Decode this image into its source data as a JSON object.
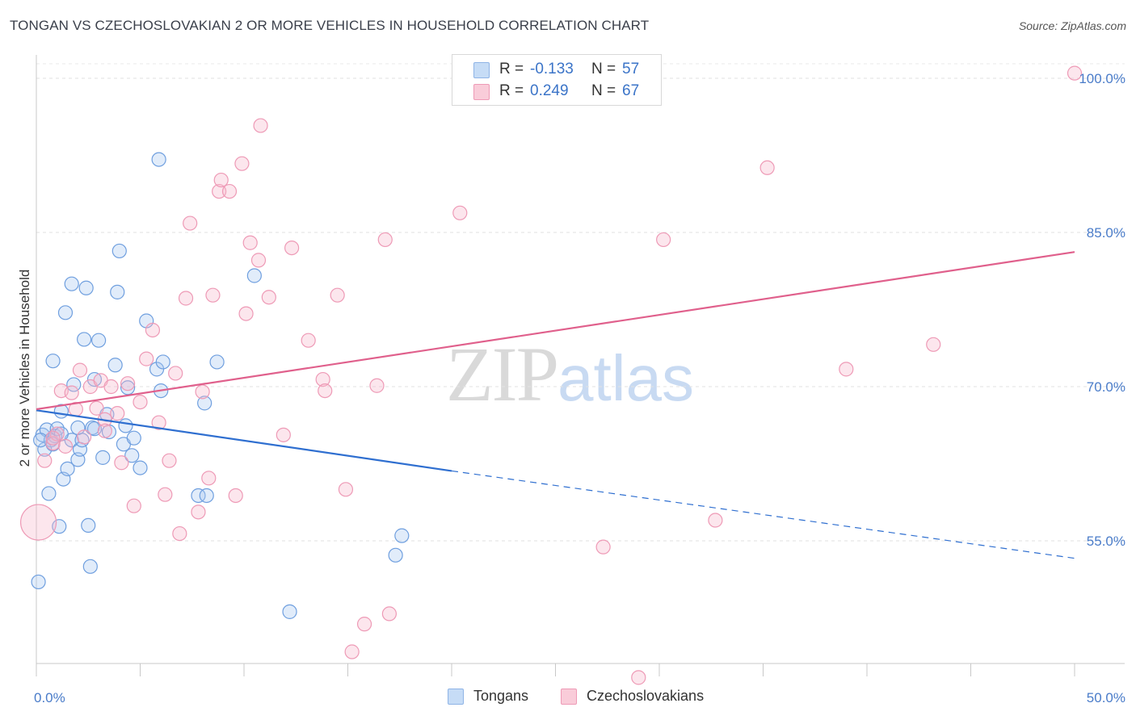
{
  "title": "TONGAN VS CZECHOSLOVAKIAN 2 OR MORE VEHICLES IN HOUSEHOLD CORRELATION CHART",
  "source": "Source: ZipAtlas.com",
  "watermark": {
    "zip": "ZIP",
    "atlas": "atlas"
  },
  "legend": {
    "rows": [
      {
        "r_label": "R =",
        "r_value": "-0.133",
        "n_label": "N =",
        "n_value": "57",
        "color": "#a8c8f0"
      },
      {
        "r_label": "R =",
        "r_value": "0.249",
        "n_label": "N =",
        "n_value": "67",
        "color": "#f5b8cb"
      }
    ]
  },
  "bottom_legend": [
    {
      "label": "Tongans",
      "color": "#a8c8f0"
    },
    {
      "label": "Czechoslovakians",
      "color": "#f5b8cb"
    }
  ],
  "chart_data": {
    "type": "scatter",
    "title": "TONGAN VS CZECHOSLOVAKIAN 2 OR MORE VEHICLES IN HOUSEHOLD CORRELATION CHART",
    "xlabel": "",
    "ylabel": "2 or more Vehicles in Household",
    "xlim": [
      0,
      50
    ],
    "ylim": [
      41,
      100.5
    ],
    "x_tick_labels": [
      "0.0%",
      "50.0%"
    ],
    "y_ticks": [
      55,
      70,
      85,
      100
    ],
    "y_tick_labels": [
      "55.0%",
      "70.0%",
      "85.0%",
      "100.0%"
    ],
    "grid": true,
    "colors": {
      "tongans": "#4a86d8",
      "czech": "#e0608c",
      "tongans_fill": "#a8c8f0",
      "czech_fill": "#f5b8cb",
      "axis_text": "#4a7cc9"
    },
    "series": [
      {
        "name": "Tongans",
        "trend": {
          "x": [
            0,
            20
          ],
          "y": [
            67.7,
            61.8
          ],
          "dashed_to": [
            50,
            53.3
          ]
        },
        "points": [
          [
            0.1,
            51.0
          ],
          [
            0.3,
            65.3
          ],
          [
            0.4,
            63.9
          ],
          [
            0.5,
            65.8
          ],
          [
            0.6,
            59.6
          ],
          [
            0.7,
            64.8
          ],
          [
            0.8,
            72.5
          ],
          [
            0.9,
            65.2
          ],
          [
            1.0,
            65.9
          ],
          [
            1.1,
            56.4
          ],
          [
            1.2,
            67.6
          ],
          [
            1.3,
            61.0
          ],
          [
            1.4,
            77.2
          ],
          [
            1.5,
            62.0
          ],
          [
            1.7,
            64.8
          ],
          [
            1.7,
            80.0
          ],
          [
            1.8,
            70.2
          ],
          [
            2.0,
            62.9
          ],
          [
            2.1,
            63.9
          ],
          [
            2.2,
            64.8
          ],
          [
            2.3,
            74.6
          ],
          [
            2.4,
            79.6
          ],
          [
            2.5,
            56.5
          ],
          [
            2.6,
            52.5
          ],
          [
            2.7,
            66.0
          ],
          [
            2.8,
            70.7
          ],
          [
            3.0,
            74.5
          ],
          [
            3.2,
            63.1
          ],
          [
            3.4,
            67.3
          ],
          [
            3.5,
            65.6
          ],
          [
            3.8,
            72.1
          ],
          [
            3.9,
            79.2
          ],
          [
            4.0,
            83.2
          ],
          [
            4.2,
            64.4
          ],
          [
            4.3,
            66.2
          ],
          [
            4.4,
            69.9
          ],
          [
            4.6,
            63.3
          ],
          [
            4.7,
            65.0
          ],
          [
            5.0,
            62.1
          ],
          [
            5.3,
            76.4
          ],
          [
            5.8,
            71.7
          ],
          [
            5.9,
            92.1
          ],
          [
            6.0,
            69.6
          ],
          [
            6.1,
            72.4
          ],
          [
            7.8,
            59.4
          ],
          [
            8.1,
            68.4
          ],
          [
            8.2,
            59.4
          ],
          [
            8.7,
            72.4
          ],
          [
            10.5,
            80.8
          ],
          [
            12.2,
            48.1
          ],
          [
            17.3,
            53.6
          ],
          [
            17.6,
            55.5
          ],
          [
            0.2,
            64.8
          ],
          [
            0.8,
            64.4
          ],
          [
            1.2,
            65.4
          ],
          [
            2.8,
            65.9
          ],
          [
            2.0,
            66.0
          ]
        ]
      },
      {
        "name": "Czechoslovakians",
        "trend": {
          "x": [
            0,
            50
          ],
          "y": [
            67.8,
            83.1
          ]
        },
        "points": [
          [
            0.1,
            56.8
          ],
          [
            0.4,
            62.8
          ],
          [
            0.8,
            64.5
          ],
          [
            1.0,
            65.4
          ],
          [
            1.2,
            69.6
          ],
          [
            1.4,
            64.2
          ],
          [
            1.7,
            69.4
          ],
          [
            1.9,
            67.8
          ],
          [
            2.1,
            71.6
          ],
          [
            2.3,
            65.1
          ],
          [
            2.6,
            70.0
          ],
          [
            2.9,
            67.9
          ],
          [
            3.1,
            70.6
          ],
          [
            3.3,
            66.8
          ],
          [
            3.6,
            70.0
          ],
          [
            3.9,
            67.4
          ],
          [
            4.1,
            62.6
          ],
          [
            4.4,
            70.3
          ],
          [
            4.7,
            58.4
          ],
          [
            5.0,
            68.5
          ],
          [
            5.3,
            72.7
          ],
          [
            5.6,
            75.5
          ],
          [
            5.9,
            66.5
          ],
          [
            6.2,
            59.5
          ],
          [
            6.4,
            62.8
          ],
          [
            6.7,
            71.3
          ],
          [
            6.9,
            55.7
          ],
          [
            7.2,
            78.6
          ],
          [
            7.4,
            85.9
          ],
          [
            7.8,
            57.8
          ],
          [
            8.0,
            69.5
          ],
          [
            8.3,
            61.1
          ],
          [
            8.5,
            78.9
          ],
          [
            8.8,
            89.0
          ],
          [
            8.9,
            90.1
          ],
          [
            9.3,
            89.0
          ],
          [
            9.6,
            59.4
          ],
          [
            9.9,
            91.7
          ],
          [
            10.1,
            77.1
          ],
          [
            10.3,
            84.0
          ],
          [
            10.7,
            82.3
          ],
          [
            10.8,
            95.4
          ],
          [
            11.2,
            78.7
          ],
          [
            11.9,
            65.3
          ],
          [
            12.3,
            83.5
          ],
          [
            13.1,
            74.5
          ],
          [
            13.8,
            70.7
          ],
          [
            13.9,
            69.6
          ],
          [
            14.5,
            78.9
          ],
          [
            14.9,
            60.0
          ],
          [
            15.2,
            44.2
          ],
          [
            15.8,
            46.9
          ],
          [
            16.4,
            70.1
          ],
          [
            16.8,
            84.3
          ],
          [
            17.0,
            47.9
          ],
          [
            20.4,
            86.9
          ],
          [
            23.9,
            100.5
          ],
          [
            27.3,
            54.4
          ],
          [
            29.0,
            41.7
          ],
          [
            30.2,
            84.3
          ],
          [
            32.7,
            57.0
          ],
          [
            35.2,
            91.3
          ],
          [
            39.0,
            71.7
          ],
          [
            43.2,
            74.1
          ],
          [
            50.0,
            100.5
          ],
          [
            3.3,
            65.7
          ],
          [
            0.8,
            65.0
          ]
        ]
      }
    ]
  }
}
